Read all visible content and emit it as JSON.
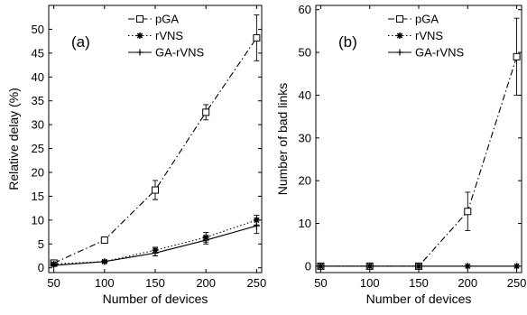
{
  "chart_data": [
    {
      "type": "line",
      "panel_label": "(a)",
      "xlabel": "Number of devices",
      "ylabel": "Relative delay (%)",
      "x": [
        50,
        100,
        150,
        200,
        250
      ],
      "xlim": [
        45,
        255
      ],
      "ylim": [
        -1,
        55
      ],
      "xticks": [
        50,
        100,
        150,
        200,
        250
      ],
      "yticks": [
        0,
        5,
        10,
        15,
        20,
        25,
        30,
        35,
        40,
        45,
        50
      ],
      "legend_position": "top-right",
      "series": [
        {
          "name": "pGA",
          "style": "dashdot",
          "marker": "square",
          "color": "#000000",
          "values": [
            1.0,
            5.8,
            16.3,
            32.6,
            48.2
          ],
          "errors": [
            0.4,
            0.6,
            2.0,
            1.6,
            4.8
          ]
        },
        {
          "name": "rVNS",
          "style": "dotted",
          "marker": "star",
          "color": "#000000",
          "values": [
            0.8,
            1.3,
            3.7,
            6.4,
            10.0
          ],
          "errors": [
            0.3,
            0.3,
            0.6,
            1.0,
            1.0
          ]
        },
        {
          "name": "GA-rVNS",
          "style": "solid",
          "marker": "plus",
          "color": "#000000",
          "values": [
            0.5,
            1.3,
            3.1,
            5.8,
            8.8
          ],
          "errors": [
            0.2,
            0.2,
            0.6,
            0.8,
            1.6
          ]
        }
      ]
    },
    {
      "type": "line",
      "panel_label": "(b)",
      "xlabel": "Number of devices",
      "ylabel": "Number of bad links",
      "x": [
        50,
        100,
        150,
        200,
        250
      ],
      "xlim": [
        45,
        255
      ],
      "ylim": [
        -1.5,
        61
      ],
      "xticks": [
        50,
        100,
        150,
        200,
        250
      ],
      "yticks": [
        0,
        10,
        20,
        30,
        40,
        50,
        60
      ],
      "legend_position": "top-right",
      "series": [
        {
          "name": "pGA",
          "style": "dashdot",
          "marker": "square",
          "color": "#000000",
          "values": [
            0,
            0,
            0,
            12.8,
            49.0
          ],
          "errors": [
            0,
            0,
            0,
            4.5,
            9.0
          ]
        },
        {
          "name": "rVNS",
          "style": "dotted",
          "marker": "star",
          "color": "#000000",
          "values": [
            0,
            0,
            0,
            0,
            0
          ],
          "errors": [
            0,
            0,
            0,
            0,
            0
          ]
        },
        {
          "name": "GA-rVNS",
          "style": "solid",
          "marker": "plus",
          "color": "#000000",
          "values": [
            0,
            0,
            0,
            0,
            0
          ],
          "errors": [
            0,
            0,
            0,
            0,
            0
          ]
        }
      ]
    }
  ]
}
